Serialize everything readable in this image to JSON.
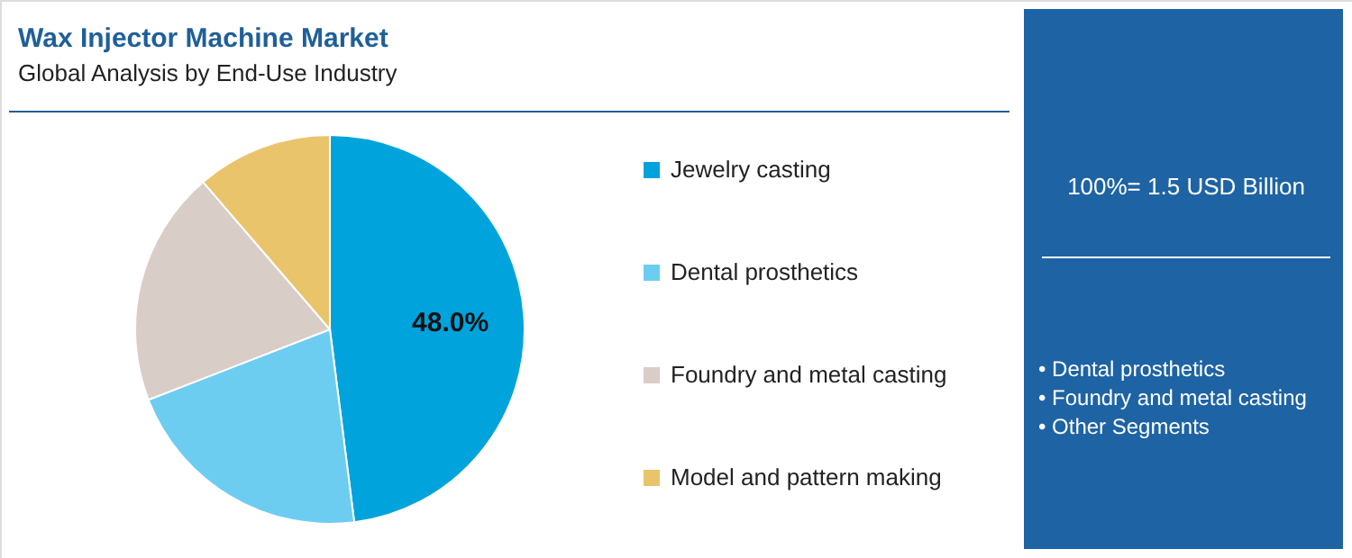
{
  "chart_data": {
    "type": "pie",
    "title": "Wax Injector Machine Market",
    "subtitle": "Global Analysis by End-Use Industry",
    "categories": [
      "Jewelry casting",
      "Dental prosthetics",
      "Foundry and metal casting",
      "Model and pattern making"
    ],
    "values": [
      48.0,
      21.1,
      19.6,
      11.3
    ],
    "colors": [
      "#00a3dc",
      "#6ccdf1",
      "#d9cdc8",
      "#e9c46a"
    ],
    "value_labels": [
      "48.0%",
      null,
      null,
      null
    ],
    "legend": "right",
    "annotations": [
      "100%= 1.5 USD Billion",
      "• Dental prosthetics",
      "• Foundry and metal casting",
      "• Other Segments"
    ]
  }
}
